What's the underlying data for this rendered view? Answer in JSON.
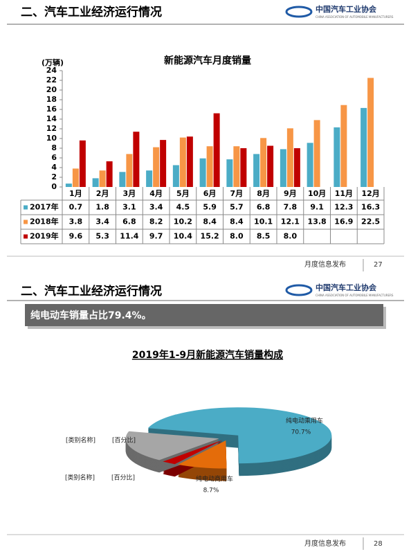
{
  "slides": [
    {
      "title": "二、汽车工业经济运行情况",
      "logo": "中国汽车工业协会",
      "logo_sub": "CHINA ASSOCIATION OF AUTOMOBILE MANUFACTURERS",
      "footer": "月度信息发布",
      "page": "27"
    },
    {
      "title": "二、汽车工业经济运行情况",
      "logo": "中国汽车工业协会",
      "logo_sub": "CHINA ASSOCIATION OF AUTOMOBILE MANUFACTURERS",
      "footer": "月度信息发布",
      "page": "28",
      "banner": "纯电动车销量占比79.4%。"
    }
  ],
  "chart_data": [
    {
      "type": "bar",
      "title": "新能源汽车月度销量",
      "y_label": "(万辆)",
      "categories": [
        "1月",
        "2月",
        "3月",
        "4月",
        "5月",
        "6月",
        "7月",
        "8月",
        "9月",
        "10月",
        "11月",
        "12月"
      ],
      "series": [
        {
          "name": "2017年",
          "color": "#4bacc6",
          "values": [
            0.7,
            1.8,
            3.1,
            3.4,
            4.5,
            5.9,
            5.7,
            6.8,
            7.8,
            9.1,
            12.3,
            16.3
          ],
          "value_labels": [
            "0.7",
            "1.8",
            "3.1",
            "3.4",
            "4.5",
            "5.9",
            "5.7",
            "6.8",
            "7.8",
            "9.1",
            "12.3",
            "16.3"
          ]
        },
        {
          "name": "2018年",
          "color": "#f79646",
          "values": [
            3.8,
            3.4,
            6.8,
            8.2,
            10.2,
            8.4,
            8.4,
            10.1,
            12.1,
            13.8,
            16.9,
            22.5
          ],
          "value_labels": [
            "3.8",
            "3.4",
            "6.8",
            "8.2",
            "10.2",
            "8.4",
            "8.4",
            "10.1",
            "12.1",
            "13.8",
            "16.9",
            "22.5"
          ]
        },
        {
          "name": "2019年",
          "color": "#c00000",
          "values": [
            9.6,
            5.3,
            11.4,
            9.7,
            10.4,
            15.2,
            8.0,
            8.5,
            8.0,
            null,
            null,
            null
          ],
          "value_labels": [
            "9.6",
            "5.3",
            "11.4",
            "9.7",
            "10.4",
            "15.2",
            "8.0",
            "8.5",
            "8.0",
            null,
            null,
            null
          ]
        }
      ],
      "ylim": [
        0,
        24
      ],
      "yticks": [
        0,
        2,
        4,
        6,
        8,
        10,
        12,
        14,
        16,
        18,
        20,
        22,
        24
      ]
    },
    {
      "type": "pie",
      "title": "2019年1-9月新能源汽车销量构成",
      "categories": [
        "纯电动乘用车",
        "纯电动商用车",
        "[类别名称]",
        "[类别名称]"
      ],
      "values": [
        70.7,
        8.7,
        2.5,
        18.1
      ],
      "value_labels": [
        "70.7%",
        "8.7%",
        "[百分比]",
        "[百分比]"
      ],
      "colors": [
        "#4bacc6",
        "#e46c0a",
        "#c00000",
        "#a6a6a6"
      ]
    }
  ]
}
